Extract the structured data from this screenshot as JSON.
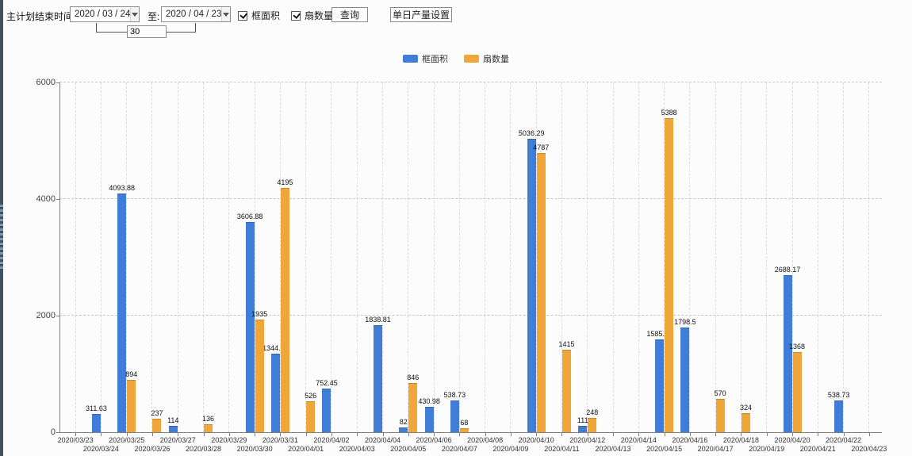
{
  "toolbar": {
    "label_main": "主计划结束时间:",
    "date_from": "2020 / 03 / 24",
    "label_to": "至:",
    "date_to": "2020 / 04 / 23",
    "interval_days": "30",
    "checkboxes": [
      {
        "label": "框面积",
        "checked": true
      },
      {
        "label": "扇数量",
        "checked": true
      }
    ],
    "query_button": "查询",
    "daily_output_button": "单日产量设置"
  },
  "legend": {
    "items": [
      {
        "label": "框面积",
        "color": "#3f7dd8"
      },
      {
        "label": "扇数量",
        "color": "#f0a73a"
      }
    ]
  },
  "chart_data": {
    "type": "bar",
    "title": "",
    "categories": [
      "2020/03/23",
      "2020/03/24",
      "2020/03/25",
      "2020/03/26",
      "2020/03/27",
      "2020/03/28",
      "2020/03/29",
      "2020/03/30",
      "2020/03/31",
      "2020/04/01",
      "2020/04/02",
      "2020/04/03",
      "2020/04/04",
      "2020/04/05",
      "2020/04/06",
      "2020/04/07",
      "2020/04/08",
      "2020/04/09",
      "2020/04/10",
      "2020/04/11",
      "2020/04/12",
      "2020/04/13",
      "2020/04/14",
      "2020/04/15",
      "2020/04/16",
      "2020/04/17",
      "2020/04/18",
      "2020/04/19",
      "2020/04/20",
      "2020/04/21",
      "2020/04/22",
      "2020/04/23"
    ],
    "series": [
      {
        "name": "框面积",
        "color": "#3f7dd8",
        "values": [
          null,
          311.63,
          4093.88,
          null,
          114,
          null,
          null,
          3606.88,
          1344.95,
          null,
          752.45,
          null,
          1838.81,
          82,
          430.98,
          538.73,
          null,
          null,
          5036.29,
          null,
          111,
          null,
          null,
          1585.96,
          1798.5,
          null,
          null,
          null,
          2688.17,
          null,
          538.73,
          null
        ]
      },
      {
        "name": "扇数量",
        "color": "#f0a73a",
        "values": [
          null,
          null,
          894,
          237,
          null,
          136,
          null,
          1935,
          4195,
          526,
          null,
          null,
          null,
          846,
          null,
          68,
          null,
          null,
          4787,
          1415,
          248,
          null,
          null,
          5388,
          null,
          570,
          324,
          null,
          1368,
          null,
          null,
          null
        ]
      }
    ],
    "ylim": [
      0,
      6000
    ],
    "yticks": [
      0,
      2000,
      4000,
      6000
    ],
    "grid": {
      "horizontal": "dashed",
      "vertical": "dashed-every-category"
    },
    "legend_position": "top-center",
    "bar_value_labels": true
  }
}
